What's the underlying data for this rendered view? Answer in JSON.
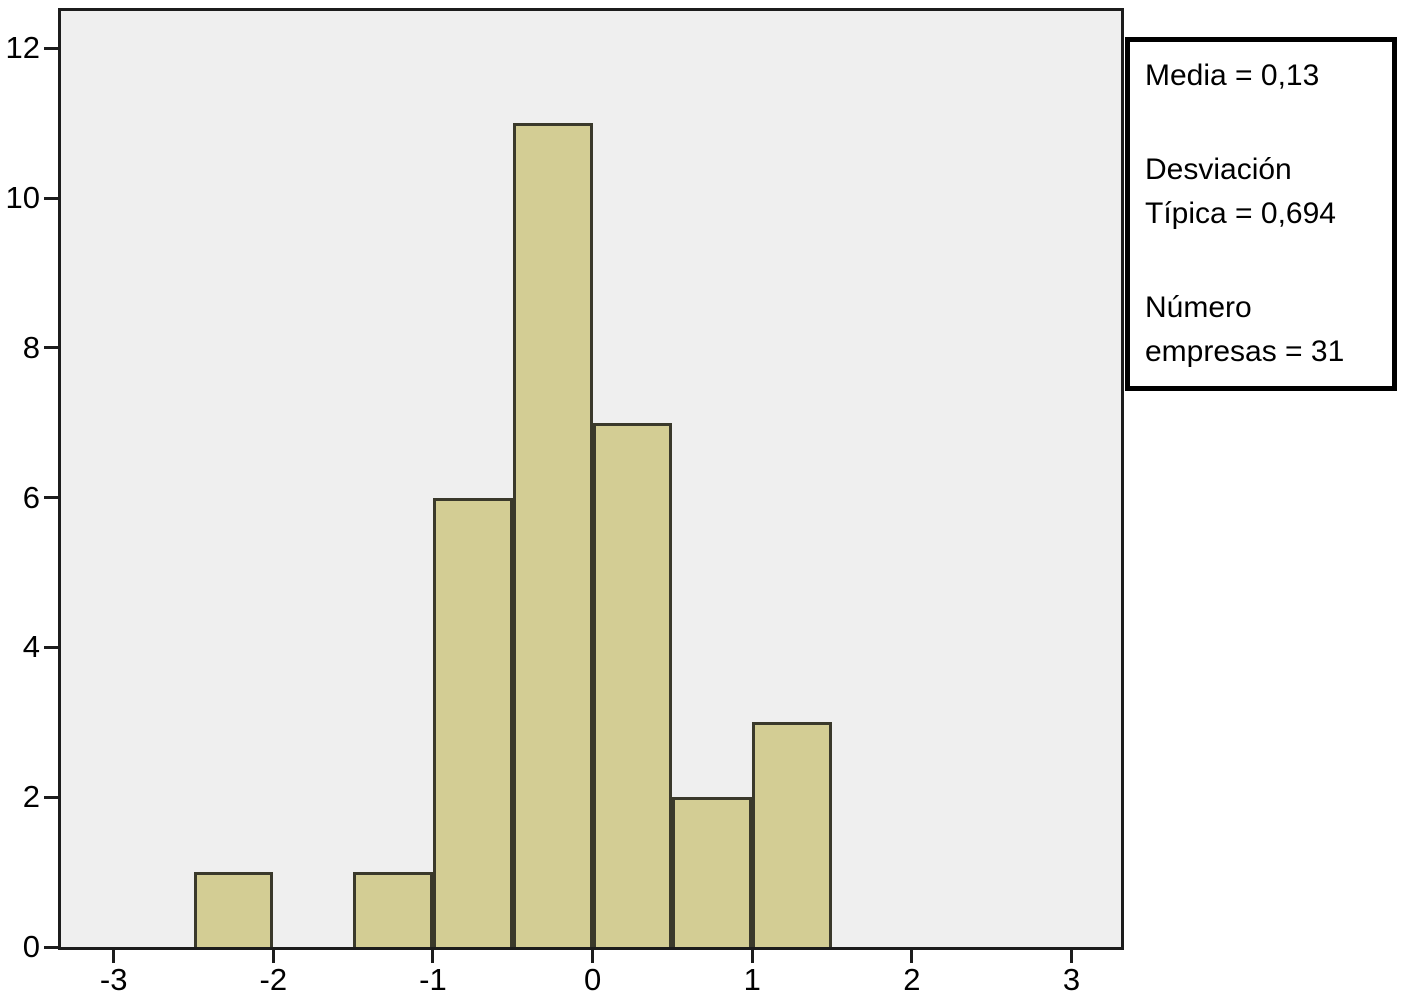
{
  "chart_data": {
    "type": "bar",
    "subtype": "histogram",
    "title": "",
    "xlabel": "",
    "ylabel": "",
    "x_ticks": [
      -3,
      -2,
      -1,
      0,
      1,
      2,
      3
    ],
    "y_ticks": [
      0,
      2,
      4,
      6,
      8,
      10,
      12
    ],
    "xlim": [
      -3.33,
      3.31
    ],
    "ylim": [
      0,
      12.5
    ],
    "grid": "off",
    "bin_width": 0.5,
    "bars": [
      {
        "x0": -2.5,
        "x1": -2.0,
        "count": 1
      },
      {
        "x0": -1.5,
        "x1": -1.0,
        "count": 1
      },
      {
        "x0": -1.0,
        "x1": -0.5,
        "count": 6
      },
      {
        "x0": -0.5,
        "x1": 0.0,
        "count": 11
      },
      {
        "x0": 0.0,
        "x1": 0.5,
        "count": 7
      },
      {
        "x0": 0.5,
        "x1": 1.0,
        "count": 2
      },
      {
        "x0": 1.0,
        "x1": 1.5,
        "count": 3
      }
    ],
    "stats": {
      "media": "0,13",
      "desviacion_tipica": "0,694",
      "numero_empresas": "31"
    },
    "legend_position": "top-right-outside",
    "colors": {
      "bar_fill": "#d3cd94",
      "bar_border": "#3a392b",
      "plot_background": "#efefef",
      "frame_border": "#1c1c1c",
      "text": "#000000",
      "page_background": "#ffffff"
    }
  },
  "legend_box": {
    "groups": [
      "Media = 0,13",
      "Desviación\nTípica = 0,694",
      "Número\nempresas = 31"
    ]
  }
}
